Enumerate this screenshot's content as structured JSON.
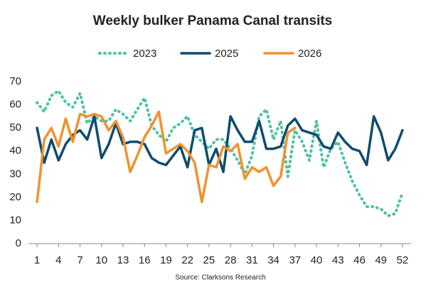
{
  "chart_data": {
    "type": "line",
    "title": "Weekly bulker Panama Canal transits",
    "source": "Source: Clarksons Research",
    "x": [
      1,
      2,
      3,
      4,
      5,
      6,
      7,
      8,
      9,
      10,
      11,
      12,
      13,
      14,
      15,
      16,
      17,
      18,
      19,
      20,
      21,
      22,
      23,
      24,
      25,
      26,
      27,
      28,
      29,
      30,
      31,
      32,
      33,
      34,
      35,
      36,
      37,
      38,
      39,
      40,
      41,
      42,
      43,
      44,
      45,
      46,
      47,
      48,
      49,
      50,
      51,
      52
    ],
    "xlim": [
      -0.2,
      53.2
    ],
    "xticks": [
      1,
      4,
      7,
      10,
      13,
      16,
      19,
      22,
      25,
      28,
      31,
      34,
      37,
      40,
      43,
      46,
      49,
      52
    ],
    "ylim": [
      0,
      70
    ],
    "yticks": [
      0,
      10,
      20,
      30,
      40,
      50,
      60,
      70
    ],
    "legend": "top",
    "series": [
      {
        "name": "2023",
        "color": "#4fc1a6",
        "dash": true,
        "values": [
          61,
          57,
          64,
          66,
          61,
          59,
          65,
          52,
          55,
          53,
          53,
          58,
          56,
          53,
          58,
          63,
          51,
          47,
          44,
          50,
          52,
          55,
          47,
          44,
          41,
          45,
          45,
          41,
          36,
          30,
          38,
          55,
          58,
          45,
          53,
          29,
          49,
          44,
          36,
          53,
          33,
          41,
          44,
          35,
          27,
          21,
          16,
          16,
          15,
          12,
          13,
          22
        ]
      },
      {
        "name": "2025",
        "color": "#0f4c6e",
        "dash": false,
        "values": [
          50,
          35,
          45,
          36,
          43,
          47,
          49,
          45,
          55,
          37,
          43,
          52,
          43,
          44,
          44,
          43,
          37,
          35,
          34,
          38,
          42,
          33,
          49,
          50,
          34,
          41,
          31,
          55,
          49,
          44,
          44,
          53,
          41,
          41,
          42,
          51,
          54,
          49,
          48,
          47,
          42,
          41,
          48,
          44,
          41,
          40,
          34,
          55,
          48,
          36,
          41,
          49
        ]
      },
      {
        "name": "2026",
        "color": "#f0922e",
        "dash": false,
        "values": [
          18,
          45,
          50,
          42,
          54,
          44,
          56,
          55,
          56,
          55,
          49,
          53,
          46,
          31,
          38,
          46,
          51,
          57,
          39,
          41,
          43,
          40,
          35,
          18,
          34,
          33,
          42,
          40,
          43,
          28,
          33,
          31,
          33,
          25,
          29,
          48,
          50,
          null,
          null,
          null,
          null,
          null,
          null,
          null,
          null,
          null,
          null,
          null,
          null,
          null,
          null,
          null
        ]
      }
    ]
  }
}
